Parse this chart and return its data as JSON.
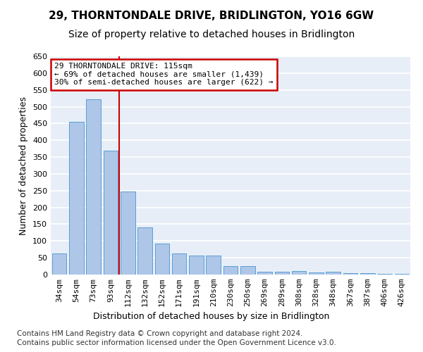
{
  "title": "29, THORNTONDALE DRIVE, BRIDLINGTON, YO16 6GW",
  "subtitle": "Size of property relative to detached houses in Bridlington",
  "xlabel": "Distribution of detached houses by size in Bridlington",
  "ylabel": "Number of detached properties",
  "categories": [
    "34sqm",
    "54sqm",
    "73sqm",
    "93sqm",
    "112sqm",
    "132sqm",
    "152sqm",
    "171sqm",
    "191sqm",
    "210sqm",
    "230sqm",
    "250sqm",
    "269sqm",
    "289sqm",
    "308sqm",
    "328sqm",
    "348sqm",
    "367sqm",
    "387sqm",
    "406sqm",
    "426sqm"
  ],
  "values": [
    62,
    455,
    522,
    368,
    248,
    140,
    93,
    62,
    57,
    57,
    26,
    25,
    8,
    9,
    11,
    7,
    8,
    4,
    5,
    3,
    3
  ],
  "bar_color": "#aec6e8",
  "bar_edge_color": "#5a9fd4",
  "background_color": "#e8eef7",
  "grid_color": "#ffffff",
  "vline_index": 4,
  "vline_color": "#cc0000",
  "annotation_box_text": "29 THORNTONDALE DRIVE: 115sqm\n← 69% of detached houses are smaller (1,439)\n30% of semi-detached houses are larger (622) →",
  "annotation_box_color": "#cc0000",
  "annotation_box_fill": "#ffffff",
  "ylim": [
    0,
    650
  ],
  "yticks": [
    0,
    50,
    100,
    150,
    200,
    250,
    300,
    350,
    400,
    450,
    500,
    550,
    600,
    650
  ],
  "footer_line1": "Contains HM Land Registry data © Crown copyright and database right 2024.",
  "footer_line2": "Contains public sector information licensed under the Open Government Licence v3.0.",
  "title_fontsize": 11,
  "subtitle_fontsize": 10,
  "xlabel_fontsize": 9,
  "ylabel_fontsize": 9,
  "tick_fontsize": 8,
  "annotation_fontsize": 8,
  "footer_fontsize": 7.5
}
